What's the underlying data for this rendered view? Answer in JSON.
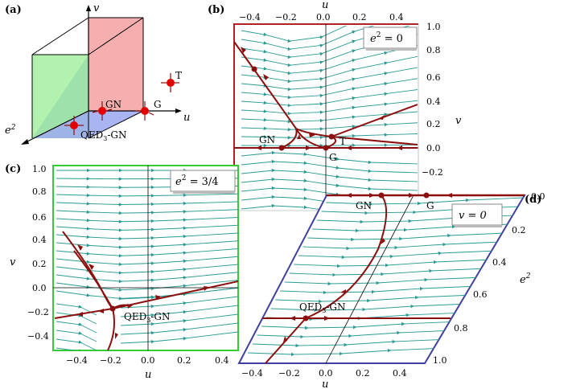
{
  "panels": {
    "a": {
      "label": "(a)",
      "axes": {
        "v": "v",
        "u": "u",
        "e2": "e"
      },
      "points": [
        "GN",
        "G",
        "T",
        "QED",
        "3",
        "-GN"
      ]
    },
    "b": {
      "label": "(b)",
      "title": "e",
      "title_sup": "2",
      "title_rest": " = 0",
      "xlabel": "u",
      "ylabel": "v",
      "xticks": [
        "−0.4",
        "−0.2",
        "0.0",
        "0.2",
        "0.4"
      ],
      "yticks": [
        "1.0",
        "0.8",
        "0.6",
        "0.4",
        "0.2",
        "0.0",
        "−0.2"
      ],
      "points": [
        "GN",
        "G",
        "T"
      ]
    },
    "c": {
      "label": "(c)",
      "title": "e",
      "title_sup": "2",
      "title_rest": " = 3/4",
      "xlabel": "u",
      "ylabel": "v",
      "xticks": [
        "−0.4",
        "−0.2",
        "0.0",
        "0.2",
        "0.4"
      ],
      "yticks": [
        "1.0",
        "0.8",
        "0.6",
        "0.4",
        "0.2",
        "0.0",
        "−0.2",
        "−0.4"
      ],
      "points": [
        "QED",
        "3",
        "-GN"
      ]
    },
    "d": {
      "label": "(d)",
      "title": "v = 0",
      "xlabel": "u",
      "ylabel": "e",
      "ylabel_sup": "2",
      "xticks": [
        "−0.4",
        "−0.2",
        "0.0",
        "0.2",
        "0.4"
      ],
      "yticks": [
        "0.0",
        "0.2",
        "0.4",
        "0.6",
        "0.8",
        "1.0"
      ],
      "points": [
        "GN",
        "G",
        "QED",
        "3",
        "-GN"
      ]
    }
  },
  "colors": {
    "stream": "#2a9a92",
    "separatrix": "#8b0f0f",
    "box_b": "#b22222",
    "box_c": "#33cc33",
    "box_d": "#4040a0"
  }
}
